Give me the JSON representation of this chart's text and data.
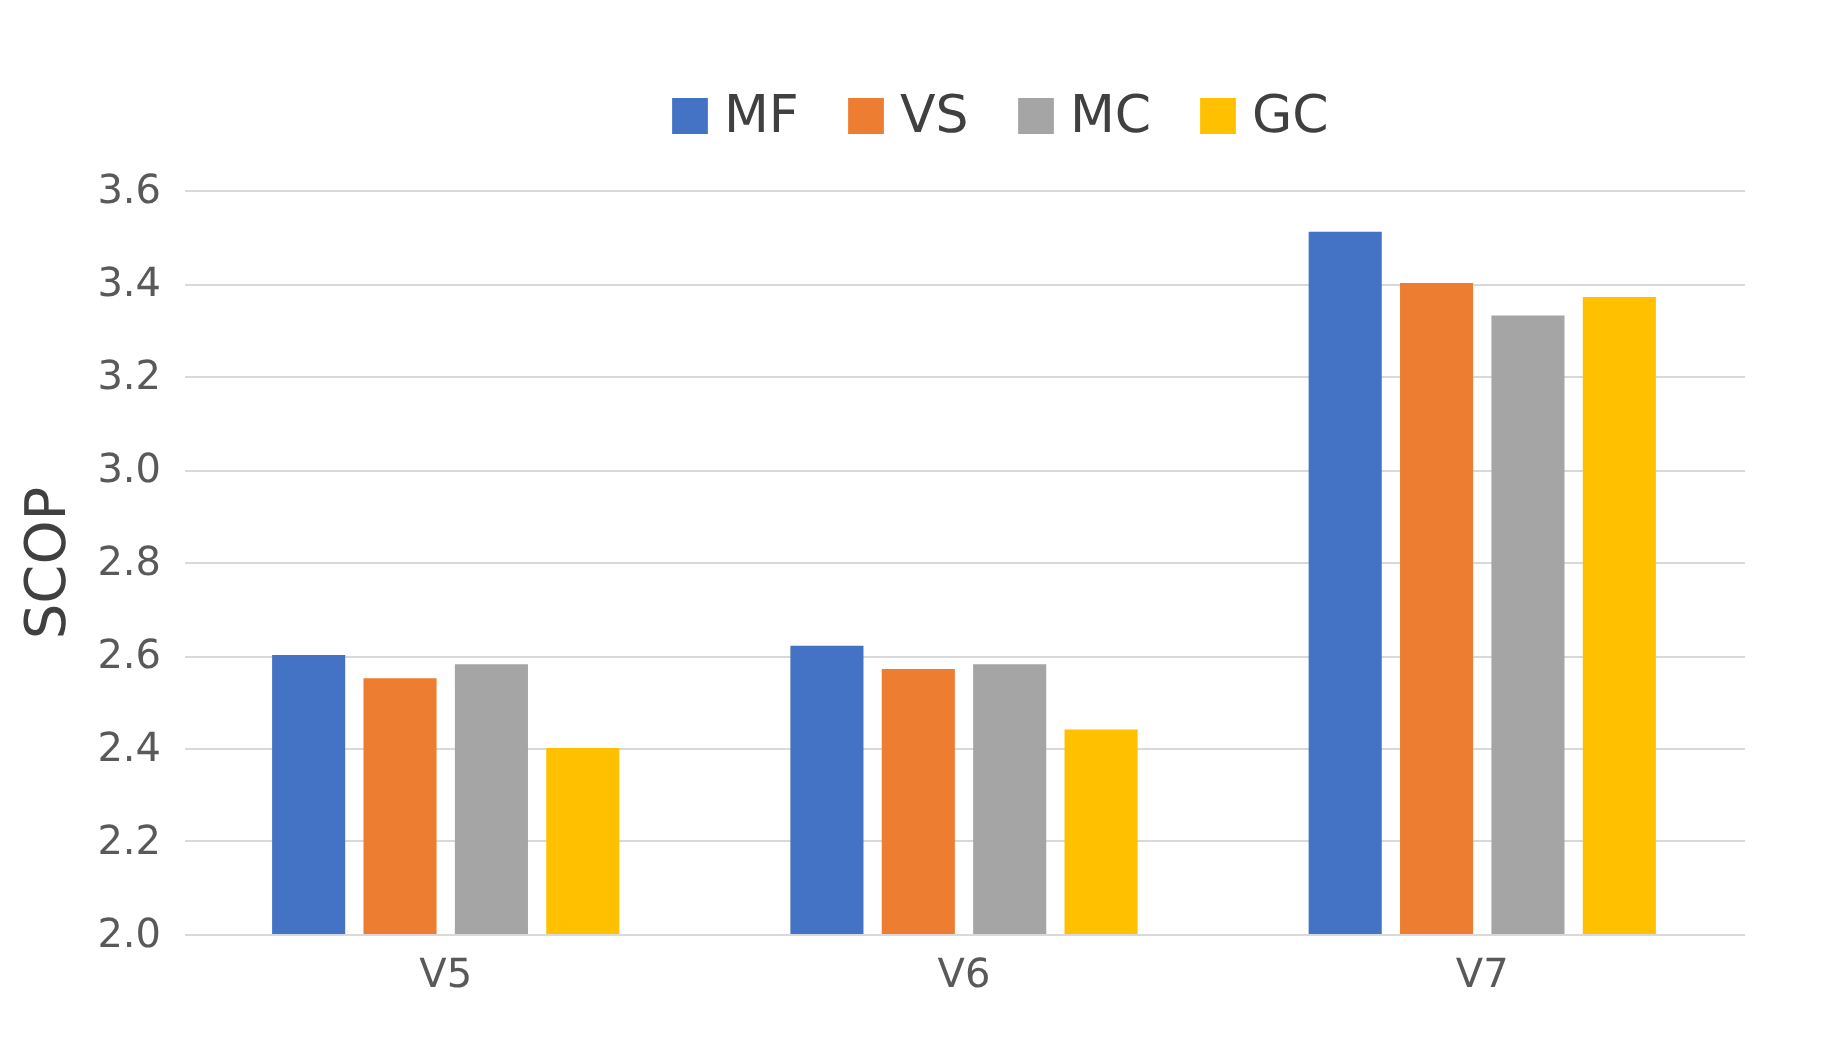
{
  "chart_data": {
    "type": "bar",
    "ylabel": "SCOP",
    "categories": [
      "V5",
      "V6",
      "V7"
    ],
    "series": [
      {
        "name": "MF",
        "color": "#4472c4",
        "values": [
          2.6,
          2.62,
          3.51
        ]
      },
      {
        "name": "VS",
        "color": "#ed7d31",
        "values": [
          2.55,
          2.57,
          3.4
        ]
      },
      {
        "name": "MC",
        "color": "#a5a5a5",
        "values": [
          2.58,
          2.58,
          3.33
        ]
      },
      {
        "name": "GC",
        "color": "#ffc000",
        "values": [
          2.4,
          2.44,
          3.37
        ]
      }
    ],
    "ylim": [
      2.0,
      3.6
    ],
    "yticks": [
      {
        "value": 2,
        "label": "2.0"
      },
      {
        "value": 2.2,
        "label": "2.2"
      },
      {
        "value": 2.4,
        "label": "2.4"
      },
      {
        "value": 2.6,
        "label": "2.6"
      },
      {
        "value": 2.8,
        "label": "2.8"
      },
      {
        "value": 3,
        "label": "3.0"
      },
      {
        "value": 3.2,
        "label": "3.2"
      },
      {
        "value": 3.4,
        "label": "3.4"
      },
      {
        "value": 3.6,
        "label": "3.6"
      }
    ],
    "grid": "y",
    "legend": "top"
  }
}
